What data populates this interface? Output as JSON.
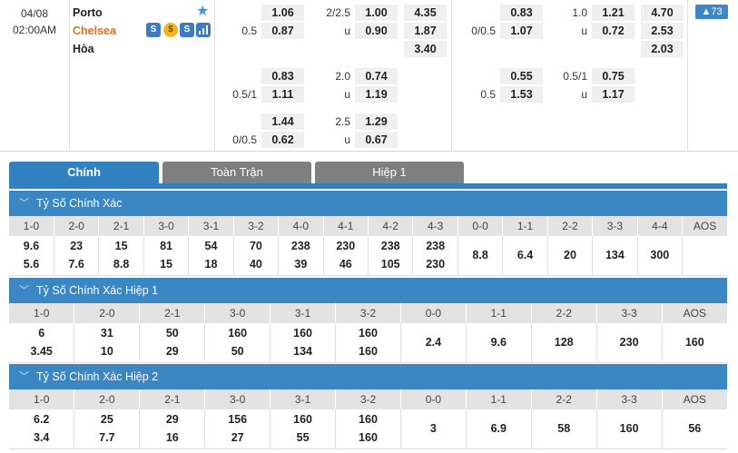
{
  "match": {
    "date": "04/08",
    "time": "02:00AM",
    "home": "Porto",
    "away": "Chelsea",
    "draw": "Hòa",
    "more_count": "▲73",
    "badges": [
      "S",
      "$",
      "S",
      "chart"
    ]
  },
  "odds_left": {
    "row1": {
      "a": "1.06",
      "hcap": "2/2.5",
      "b": "1.00",
      "c": "4.35"
    },
    "row2": {
      "hlabel": "0.5",
      "a": "0.87",
      "ulabel": "u",
      "b": "0.90",
      "c": "1.87"
    },
    "row3": {
      "c": "3.40"
    },
    "row4": {
      "a": "0.83",
      "hcap": "2.0",
      "b": "0.74"
    },
    "row5": {
      "hlabel": "0.5/1",
      "a": "1.11",
      "ulabel": "u",
      "b": "1.19"
    },
    "row6": {
      "a": "1.44",
      "hcap": "2.5",
      "b": "1.29"
    },
    "row7": {
      "hlabel": "0/0.5",
      "a": "0.62",
      "ulabel": "u",
      "b": "0.67"
    }
  },
  "odds_right": {
    "row1": {
      "a": "0.83",
      "hcap": "1.0",
      "b": "1.21",
      "c": "4.70"
    },
    "row2": {
      "hlabel": "0/0.5",
      "a": "1.07",
      "ulabel": "u",
      "b": "0.72",
      "c": "2.53"
    },
    "row3": {
      "c": "2.03"
    },
    "row4": {
      "a": "0.55",
      "hcap": "0.5/1",
      "b": "0.75"
    },
    "row5": {
      "hlabel": "0.5",
      "a": "1.53",
      "ulabel": "u",
      "b": "1.17"
    }
  },
  "tabs": [
    "Chính",
    "Toàn Trận",
    "Hiệp 1"
  ],
  "sections": [
    {
      "title": "Tỷ Số Chính Xác",
      "headers": [
        "1-0",
        "2-0",
        "2-1",
        "3-0",
        "3-1",
        "3-2",
        "4-0",
        "4-1",
        "4-2",
        "4-3",
        "0-0",
        "1-1",
        "2-2",
        "3-3",
        "4-4",
        "AOS"
      ],
      "top": [
        "9.6",
        "23",
        "15",
        "81",
        "54",
        "70",
        "238",
        "230",
        "238",
        "238",
        "8.8",
        "6.4",
        "20",
        "134",
        "300"
      ],
      "bottom": [
        "5.6",
        "7.6",
        "8.8",
        "15",
        "18",
        "40",
        "39",
        "46",
        "105",
        "230"
      ]
    },
    {
      "title": "Tỷ Số Chính Xác Hiệp 1",
      "headers": [
        "1-0",
        "2-0",
        "2-1",
        "3-0",
        "3-1",
        "3-2",
        "0-0",
        "1-1",
        "2-2",
        "3-3",
        "AOS"
      ],
      "top": [
        "6",
        "31",
        "50",
        "160",
        "160",
        "160",
        "2.4",
        "9.6",
        "128",
        "230",
        "160"
      ],
      "bottom": [
        "3.45",
        "10",
        "29",
        "50",
        "134",
        "160"
      ]
    },
    {
      "title": "Tỷ Số Chính Xác Hiệp 2",
      "headers": [
        "1-0",
        "2-0",
        "2-1",
        "3-0",
        "3-1",
        "3-2",
        "0-0",
        "1-1",
        "2-2",
        "3-3",
        "AOS"
      ],
      "top": [
        "6.2",
        "25",
        "29",
        "156",
        "160",
        "160",
        "3",
        "6.9",
        "58",
        "160",
        "56"
      ],
      "bottom": [
        "3.4",
        "7.7",
        "16",
        "27",
        "55",
        "160"
      ]
    }
  ]
}
